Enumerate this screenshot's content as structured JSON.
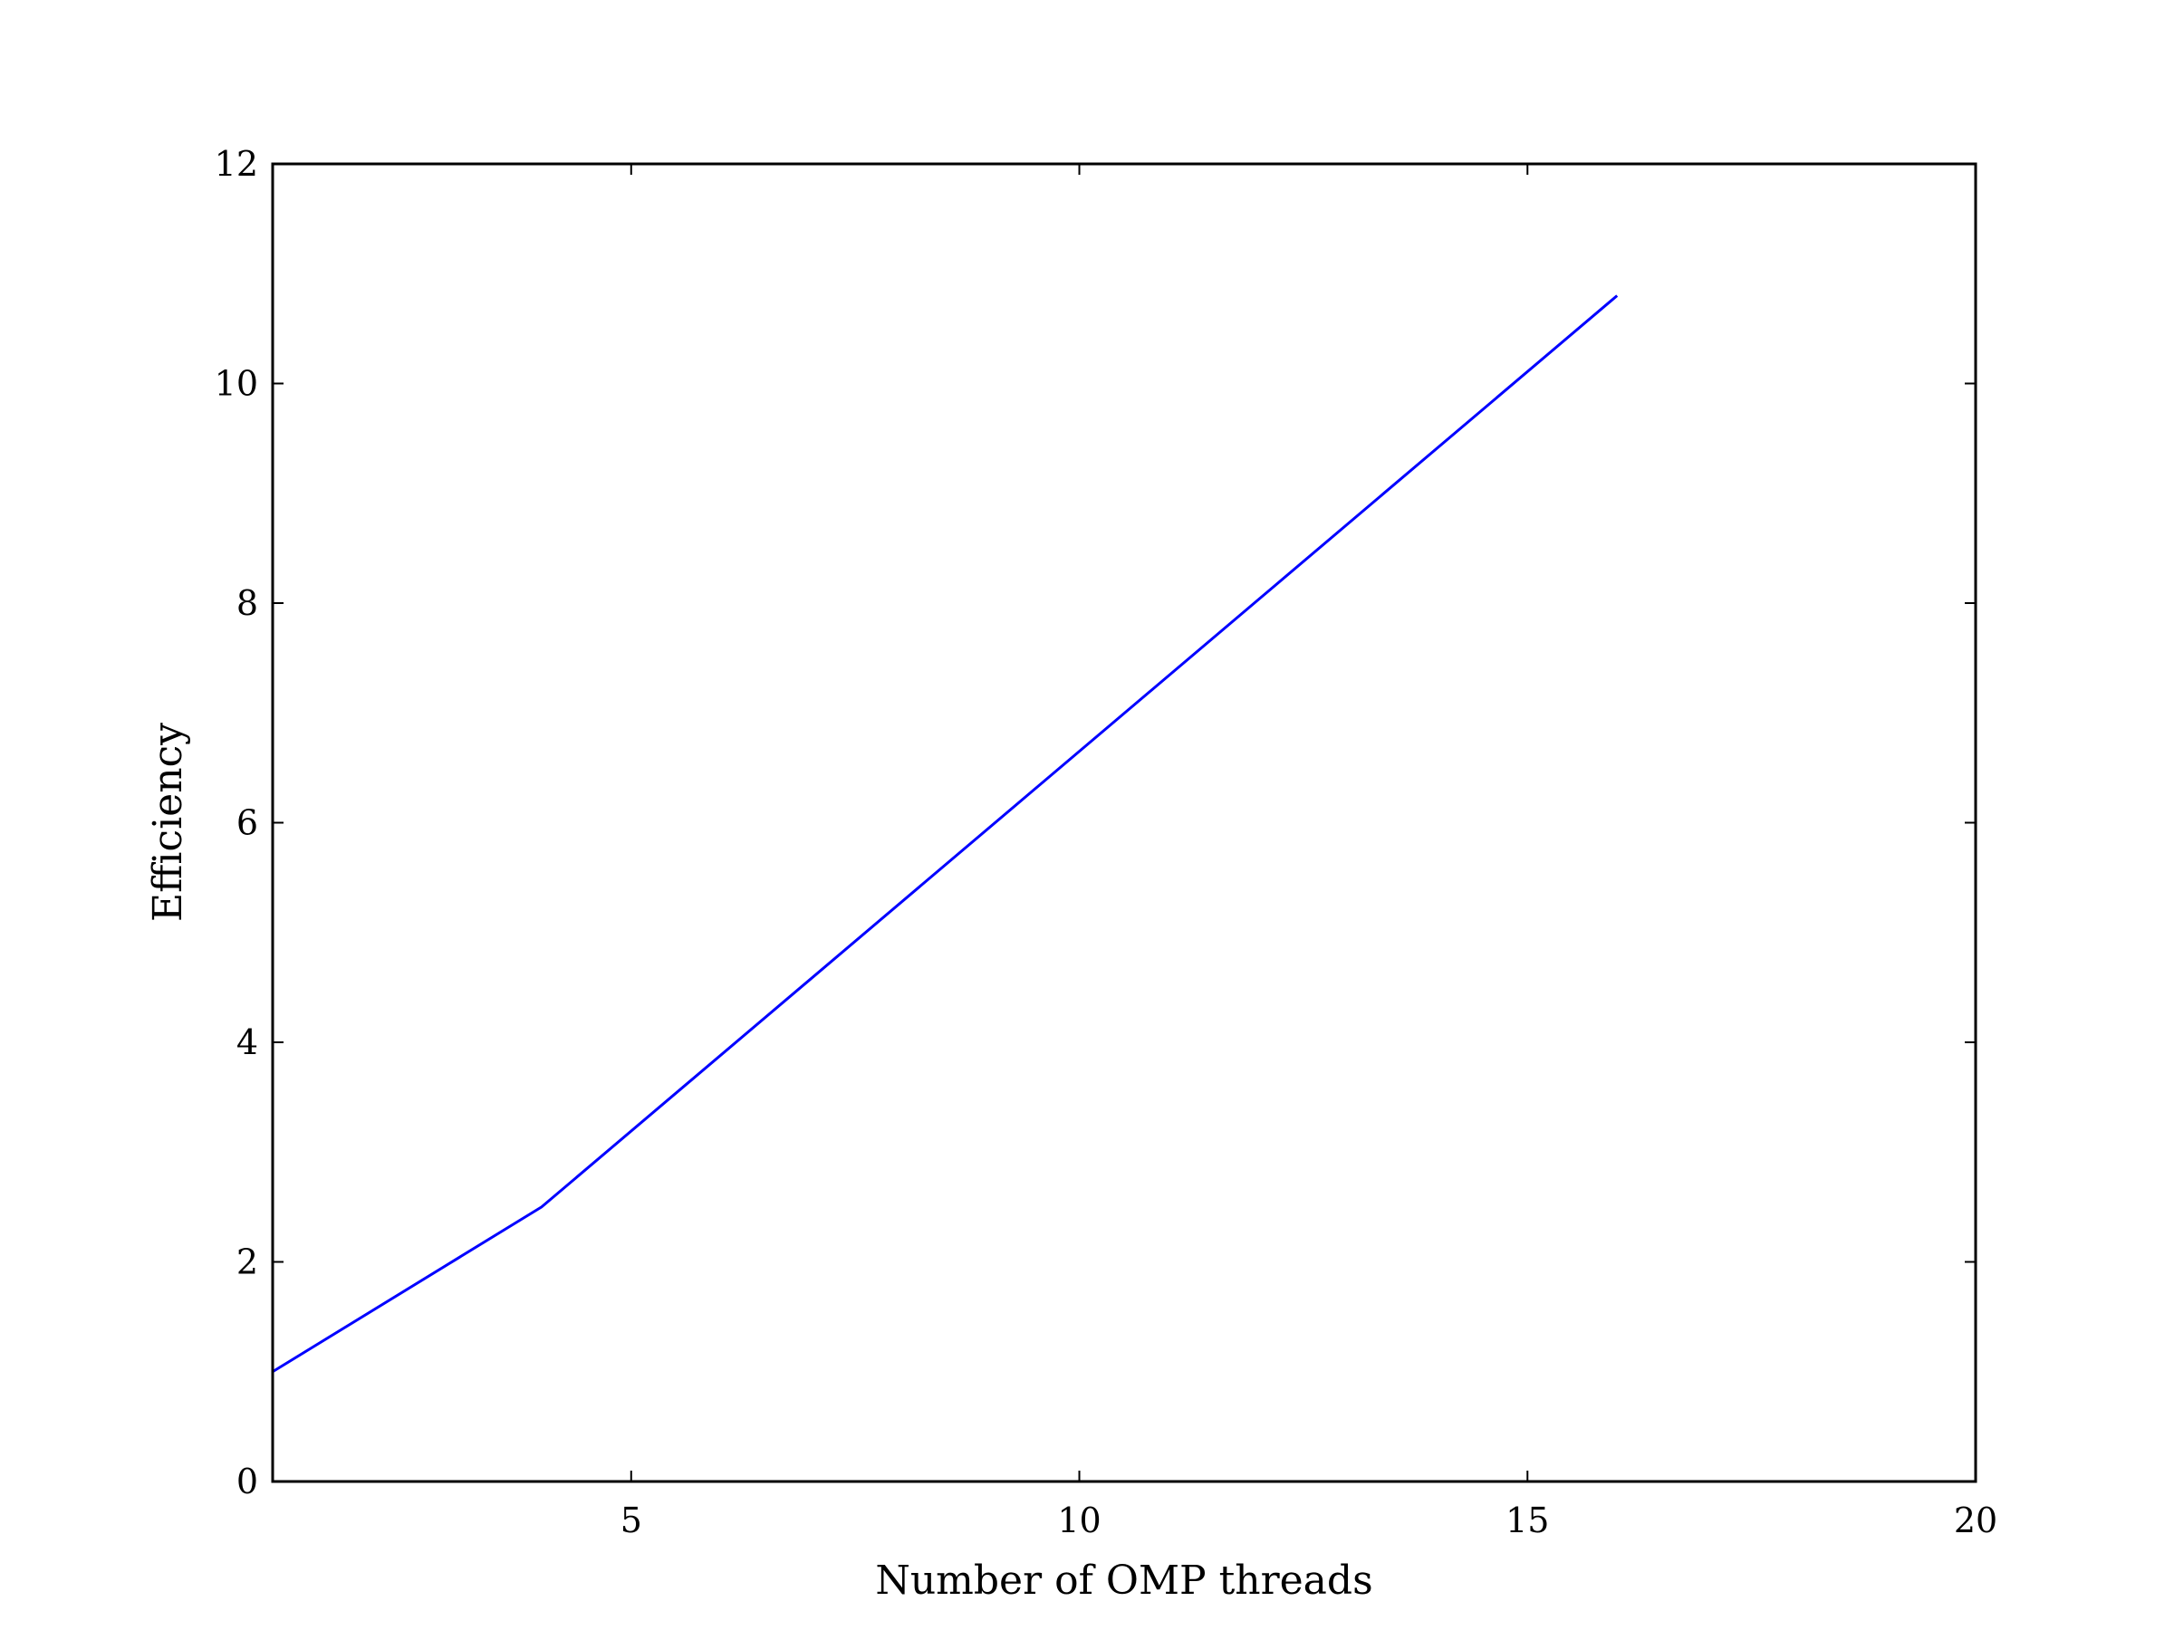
{
  "chart_data": {
    "type": "line",
    "title": "",
    "xlabel": "Number of OMP threads",
    "ylabel": "Efficiency",
    "xlim": [
      1,
      20
    ],
    "ylim": [
      0,
      12
    ],
    "x_ticks": [
      5,
      10,
      15,
      20
    ],
    "y_ticks": [
      0,
      2,
      4,
      6,
      8,
      10,
      12
    ],
    "grid": false,
    "legend": "none",
    "series": [
      {
        "color": "#0000ff",
        "x": [
          1,
          4,
          16
        ],
        "y": [
          1.0,
          2.5,
          10.8
        ]
      }
    ]
  }
}
